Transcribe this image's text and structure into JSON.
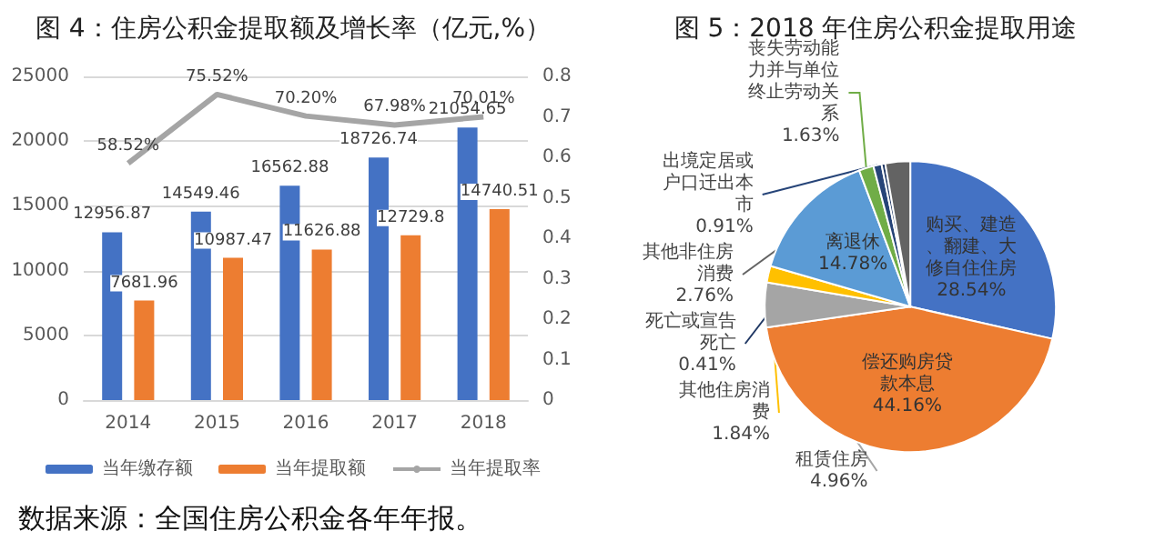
{
  "chart_data": [
    {
      "type": "bar",
      "title": "图 4：住房公积金提取额及增长率（亿元,%）",
      "categories": [
        "2014",
        "2015",
        "2016",
        "2017",
        "2018"
      ],
      "series": [
        {
          "name": "当年缴存额",
          "color": "#4472c4",
          "values": [
            12956.87,
            14549.46,
            16562.88,
            18726.74,
            21054.65
          ]
        },
        {
          "name": "当年提取额",
          "color": "#ed7d31",
          "values": [
            7681.96,
            10987.47,
            11626.88,
            12729.8,
            14740.51
          ]
        },
        {
          "name": "当年提取率",
          "type": "line",
          "axis": "y2",
          "color": "#a5a5a5",
          "values": [
            0.5852,
            0.7552,
            0.702,
            0.6798,
            0.7001
          ],
          "value_labels": [
            "58.52%",
            "75.52%",
            "70.20%",
            "67.98%",
            "70.01%"
          ]
        }
      ],
      "data_labels": true,
      "ylim": [
        0,
        25000
      ],
      "yticks": [
        0,
        5000,
        10000,
        15000,
        20000,
        25000
      ],
      "y2lim": [
        0,
        0.8
      ],
      "y2ticks": [
        0,
        0.1,
        0.2,
        0.3,
        0.4,
        0.5,
        0.6,
        0.7,
        0.8
      ],
      "grid": "y",
      "legend": "bottom",
      "marker": "none",
      "line_style": "solid",
      "annotations": [
        "数据来源：全国住房公积金各年年报。"
      ]
    },
    {
      "type": "pie",
      "title": "图 5：2018 年住房公积金提取用途",
      "categories": [
        "购买、建造、翻建、大修自住住房",
        "偿还购房贷款本息",
        "租赁住房",
        "其他住房消费",
        "离退休",
        "丧失劳动能力并与单位终止劳动关系",
        "出境定居或户口迁出本市",
        "死亡或宣告死亡",
        "其他非住房消费"
      ],
      "values": [
        28.54,
        44.16,
        4.96,
        1.84,
        14.78,
        1.63,
        0.91,
        0.41,
        2.76
      ],
      "value_labels": [
        "28.54%",
        "44.16%",
        "4.96%",
        "1.84%",
        "14.78%",
        "1.63%",
        "0.91%",
        "0.41%",
        "2.76%"
      ],
      "colors": [
        "#4472c4",
        "#ed7d31",
        "#a5a5a5",
        "#ffc000",
        "#5b9bd5",
        "#70ad47",
        "#264478",
        "#203864",
        "#636363"
      ]
    }
  ]
}
